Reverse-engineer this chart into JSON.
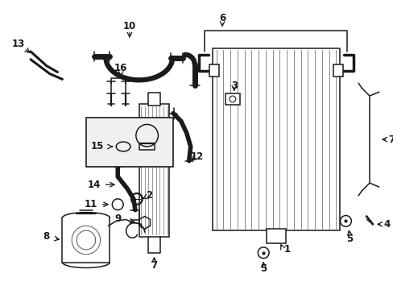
{
  "bg_color": "#ffffff",
  "line_color": "#1a1a1a",
  "fig_width": 4.89,
  "fig_height": 3.6,
  "dpi": 100,
  "label_fontsize": 8.5,
  "label_fontweight": "bold"
}
